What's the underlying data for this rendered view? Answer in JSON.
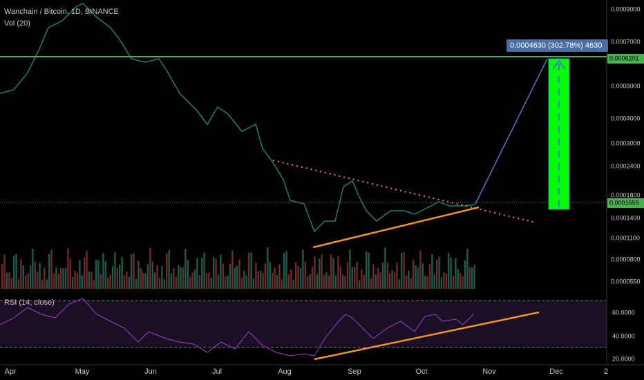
{
  "header": {
    "symbol": "Wanchain / Bitcoin, 1D, BINANCE",
    "volume": "Vol (20)"
  },
  "rsi": {
    "label": "RSI (14, close)"
  },
  "annotation": {
    "text": "0.0004630 (302.78%) 4630"
  },
  "price_axis": {
    "labels": [
      "0.0009000",
      "0.0007000",
      "0.0005000",
      "0.0004000",
      "0.0003000",
      "0.0002400",
      "0.0001800",
      "0.0001400",
      "0.0001100",
      "0.0000800",
      "0.0000550"
    ],
    "resistance": "0.0006201",
    "current": "0.0001659"
  },
  "rsi_axis": {
    "labels": [
      "60.0000",
      "40.0000",
      "20.0000"
    ]
  },
  "time_axis": {
    "labels": [
      "Apr",
      "May",
      "Jun",
      "Jul",
      "Aug",
      "Sep",
      "Oct",
      "Nov",
      "Dec",
      "2"
    ]
  }
}
